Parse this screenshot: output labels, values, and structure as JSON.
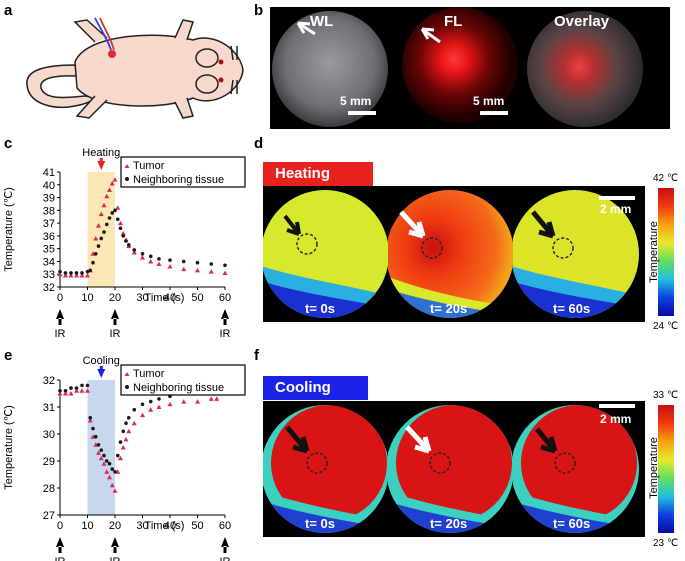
{
  "panel_labels": {
    "a": "a",
    "b": "b",
    "c": "c",
    "d": "d",
    "e": "e",
    "f": "f"
  },
  "panel_b": {
    "wl": "WL",
    "fl": "FL",
    "overlay": "Overlay",
    "scale1": "5 mm",
    "scale2": "5 mm"
  },
  "panel_d": {
    "title": "Heating",
    "scale": "2 mm",
    "t1": "t= 0s",
    "t2": "t= 20s",
    "t3": "t= 60s",
    "cb_max": "42 ℃",
    "cb_min": "24 ℃",
    "cb_label": "Temperature",
    "accent": "#e8231f"
  },
  "panel_f": {
    "title": "Cooling",
    "scale": "2 mm",
    "t1": "t= 0s",
    "t2": "t= 20s",
    "t3": "t= 60s",
    "cb_max": "33 ℃",
    "cb_min": "23 ℃",
    "cb_label": "Temperature",
    "accent": "#1a22e8"
  },
  "chart_data": [
    {
      "type": "scatter",
      "panel": "c",
      "annotation": "Heating",
      "xlabel": "Time (s)",
      "ylabel": "Temperature (℃)",
      "xlim": [
        0,
        60
      ],
      "ylim": [
        32,
        41
      ],
      "xticks": [
        0,
        10,
        20,
        30,
        40,
        50,
        60
      ],
      "yticks": [
        32,
        33,
        34,
        35,
        36,
        37,
        38,
        39,
        40,
        41
      ],
      "ir_label": "IR",
      "ir_marks": [
        0,
        20,
        60
      ],
      "shade": [
        10,
        20
      ],
      "legend": [
        "Tumor",
        "Neighboring tissue"
      ],
      "series": [
        {
          "name": "Tumor",
          "color": "#e0284e",
          "marker": "triangle",
          "x": [
            0,
            2,
            4,
            6,
            8,
            10,
            11,
            12,
            13,
            14,
            15,
            16,
            17,
            18,
            19,
            20,
            21,
            22,
            23,
            24,
            25,
            27,
            30,
            33,
            36,
            40,
            45,
            50,
            55,
            60
          ],
          "y": [
            33.0,
            32.9,
            32.9,
            32.9,
            32.9,
            32.9,
            33.3,
            34.6,
            35.8,
            36.8,
            37.7,
            38.4,
            39.1,
            39.6,
            40.1,
            40.4,
            38.2,
            37.0,
            36.2,
            35.7,
            35.2,
            34.7,
            34.3,
            34.0,
            33.8,
            33.6,
            33.4,
            33.3,
            33.2,
            33.1
          ]
        },
        {
          "name": "Neighboring tissue",
          "color": "#1a1a1a",
          "marker": "dot",
          "x": [
            0,
            2,
            4,
            6,
            8,
            10,
            11,
            12,
            13,
            14,
            15,
            16,
            17,
            18,
            19,
            20,
            21,
            22,
            23,
            24,
            25,
            27,
            30,
            33,
            36,
            40,
            45,
            50,
            55,
            60
          ],
          "y": [
            33.2,
            33.1,
            33.1,
            33.1,
            33.1,
            33.2,
            33.3,
            33.9,
            34.6,
            35.2,
            35.8,
            36.3,
            36.9,
            37.4,
            37.8,
            38.0,
            37.3,
            36.6,
            36.0,
            35.6,
            35.3,
            34.9,
            34.6,
            34.4,
            34.2,
            34.1,
            34.0,
            33.9,
            33.8,
            33.7
          ]
        }
      ]
    },
    {
      "type": "scatter",
      "panel": "e",
      "annotation": "Cooling",
      "xlabel": "Time (s)",
      "ylabel": "Temperature (℃)",
      "xlim": [
        0,
        60
      ],
      "ylim": [
        27,
        32
      ],
      "xticks": [
        0,
        10,
        20,
        30,
        40,
        50,
        60
      ],
      "yticks": [
        27,
        28,
        29,
        30,
        31,
        32
      ],
      "ir_label": "IR",
      "ir_marks": [
        0,
        20,
        60
      ],
      "shade": [
        10,
        20
      ],
      "legend": [
        "Tumor",
        "Neighboring tissue"
      ],
      "series": [
        {
          "name": "Tumor",
          "color": "#e0284e",
          "marker": "triangle",
          "x": [
            0,
            2,
            4,
            6,
            8,
            10,
            11,
            12,
            13,
            14,
            15,
            16,
            17,
            18,
            19,
            20,
            21,
            22,
            23,
            24,
            25,
            27,
            30,
            33,
            36,
            40,
            45,
            50,
            55,
            57
          ],
          "y": [
            31.5,
            31.5,
            31.5,
            31.6,
            31.6,
            31.6,
            30.5,
            29.9,
            29.6,
            29.3,
            29.1,
            28.9,
            28.6,
            28.4,
            28.1,
            27.9,
            28.6,
            29.1,
            29.5,
            29.8,
            30.1,
            30.4,
            30.7,
            30.9,
            31.0,
            31.1,
            31.2,
            31.2,
            31.3,
            31.3
          ]
        },
        {
          "name": "Neighboring tissue",
          "color": "#1a1a1a",
          "marker": "dot",
          "x": [
            0,
            2,
            4,
            6,
            8,
            10,
            11,
            12,
            13,
            14,
            15,
            16,
            17,
            18,
            19,
            20,
            21,
            22,
            23,
            24,
            25,
            27,
            30,
            33,
            36,
            40,
            45,
            50,
            55,
            57
          ],
          "y": [
            31.6,
            31.6,
            31.7,
            31.7,
            31.8,
            31.8,
            30.6,
            30.2,
            29.9,
            29.6,
            29.4,
            29.2,
            29.0,
            28.9,
            28.7,
            28.6,
            29.2,
            29.7,
            30.1,
            30.4,
            30.6,
            30.9,
            31.1,
            31.2,
            31.3,
            31.4,
            31.5,
            31.5,
            31.6,
            31.6
          ]
        }
      ]
    }
  ]
}
